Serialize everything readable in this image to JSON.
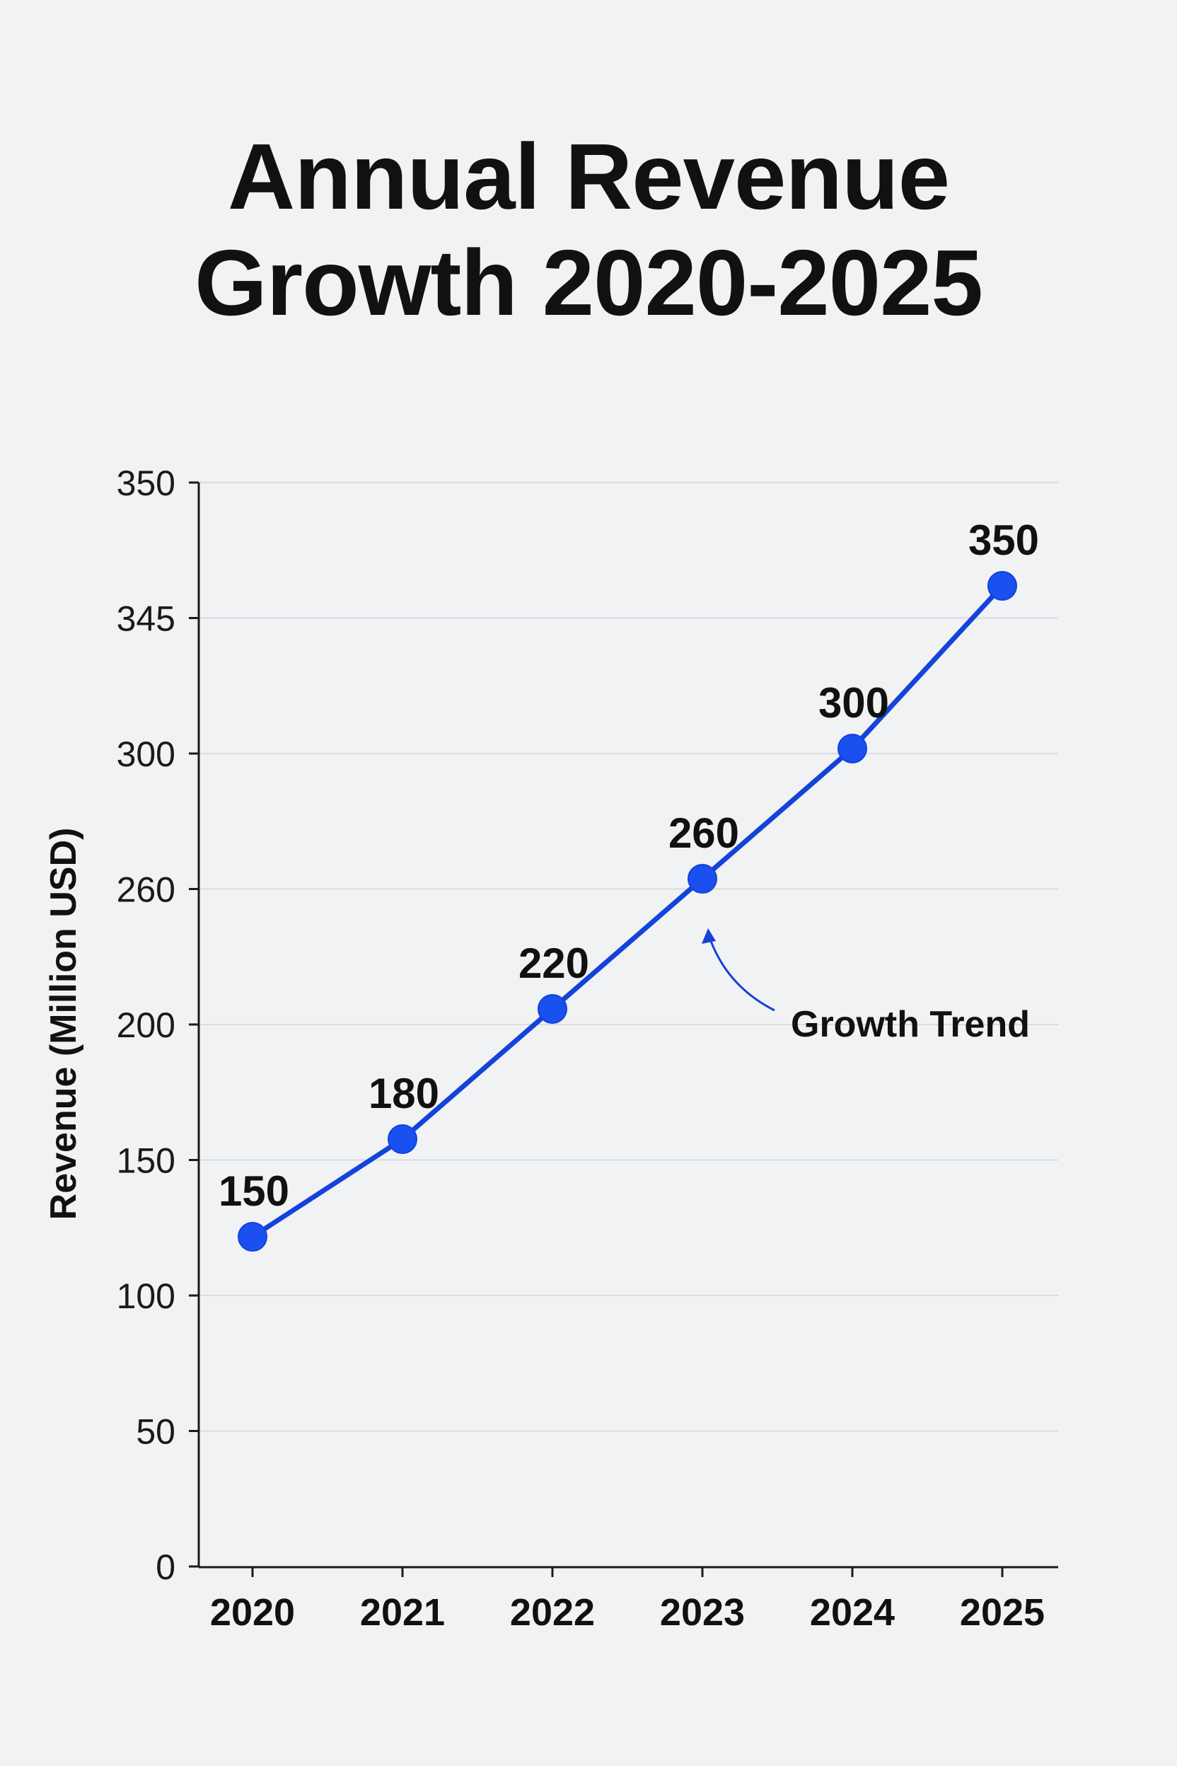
{
  "chart_data": {
    "type": "line",
    "title_lines": [
      "Annual Revenue",
      "Growth 2020-2025"
    ],
    "ylabel": "Revenue (Million USD)",
    "xlabel": "",
    "categories": [
      "2020",
      "2021",
      "2022",
      "2023",
      "2024",
      "2025"
    ],
    "series": [
      {
        "name": "Revenue",
        "values": [
          150,
          180,
          220,
          260,
          300,
          350
        ],
        "data_labels": [
          "150",
          "180",
          "220",
          "260",
          "300",
          "350"
        ]
      }
    ],
    "y_ticks": [
      "0",
      "50",
      "100",
      "150",
      "200",
      "260",
      "300",
      "345",
      "350"
    ],
    "annotation": {
      "text": "Growth Trend",
      "points_to": "2023"
    },
    "grid": true,
    "colors": {
      "line": "#1443d9",
      "point": "#1a4ff0",
      "grid": "#d9dcdf",
      "background": "#f1f2f3"
    }
  }
}
